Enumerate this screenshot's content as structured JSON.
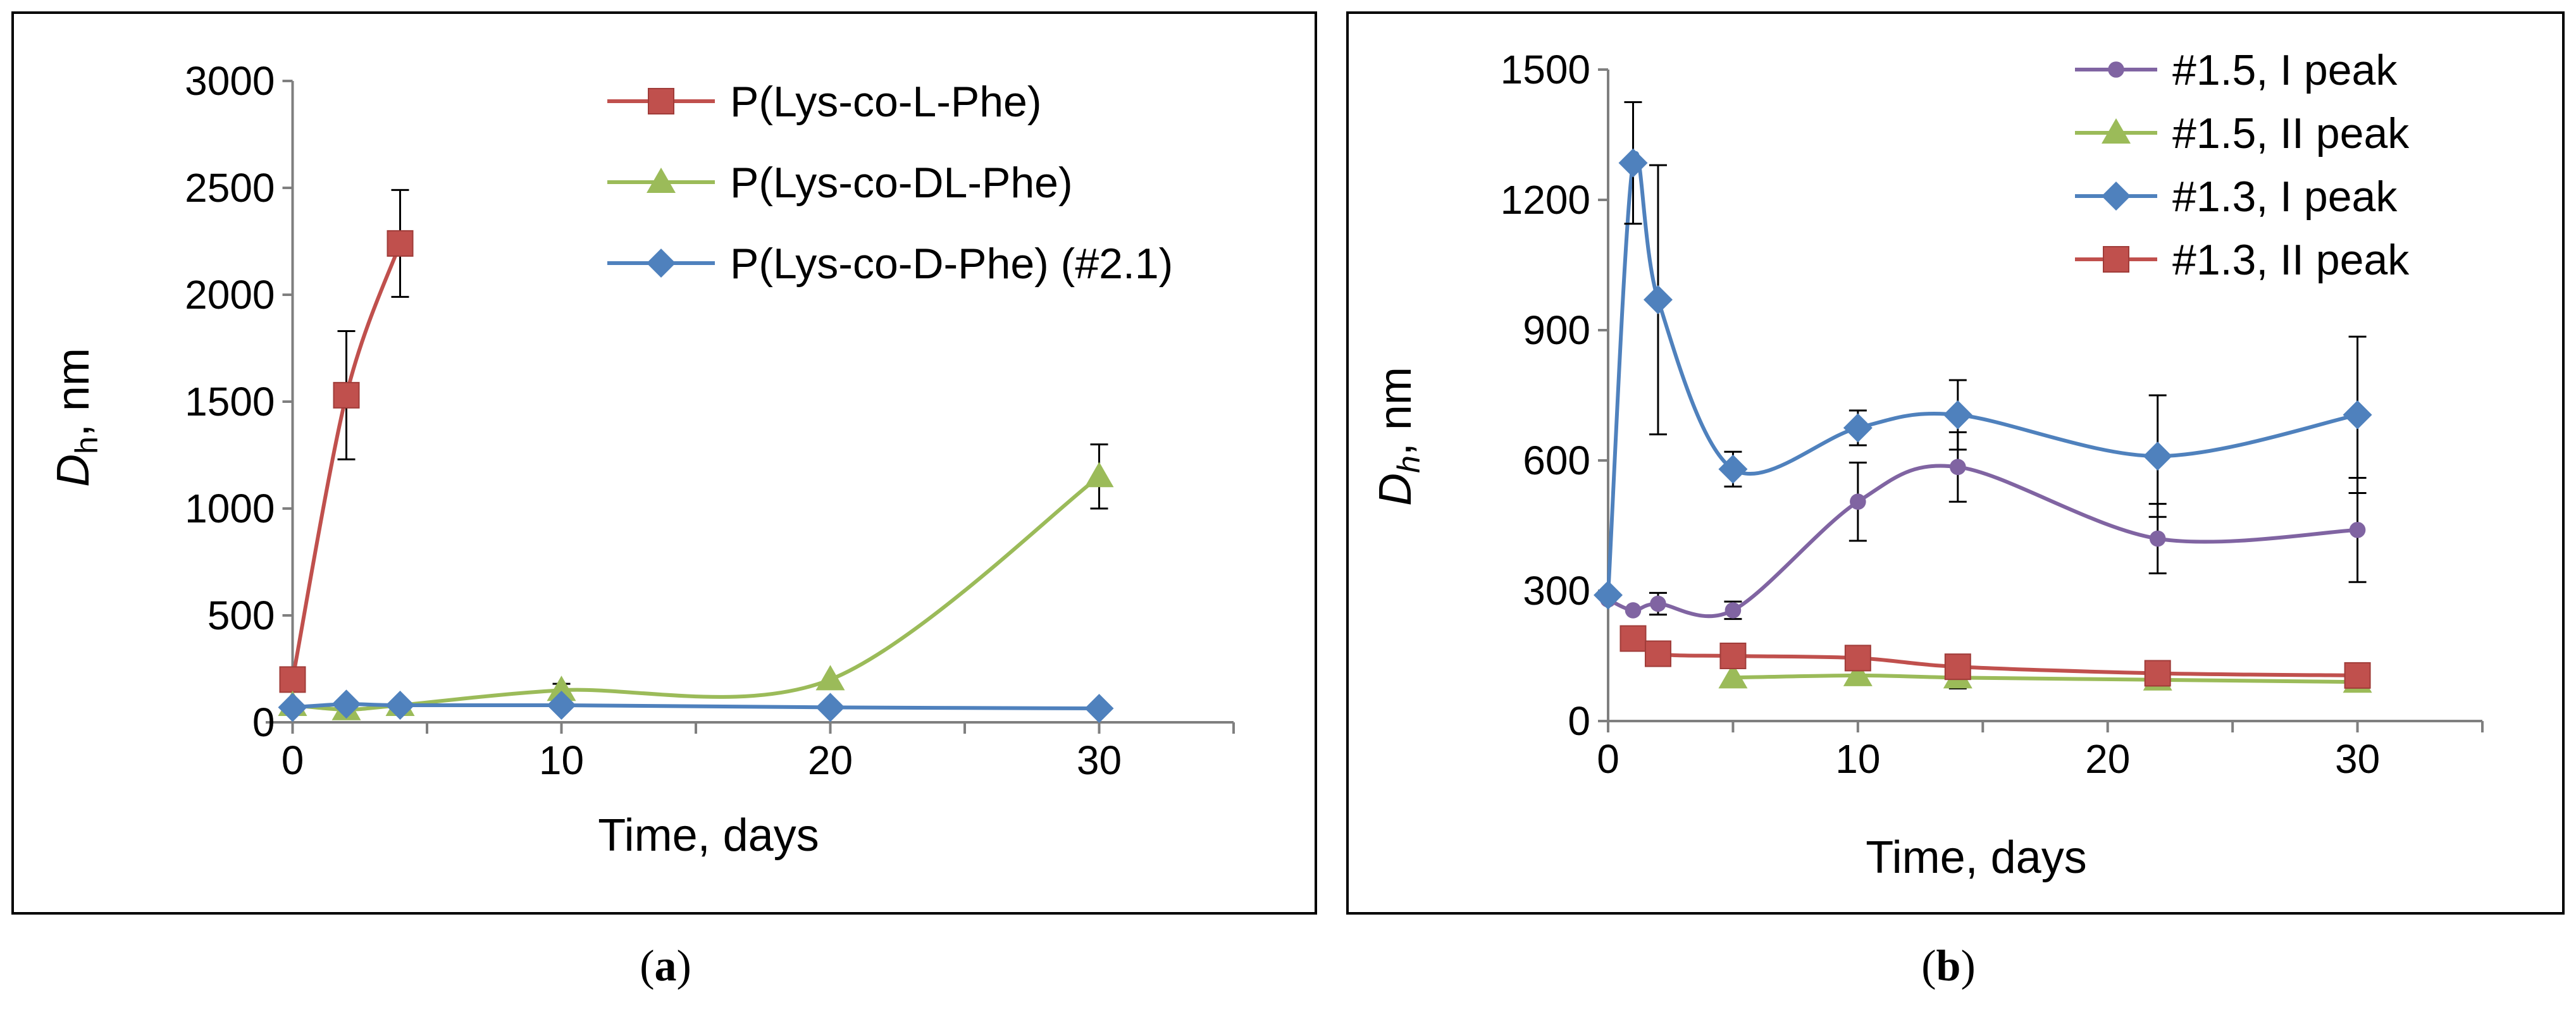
{
  "chart_data": [
    {
      "type": "line",
      "panel_label": "a",
      "xlabel": "Time, days",
      "ylabel_main": "D",
      "ylabel_sub": "h",
      "ylabel_suffix": ", nm",
      "xlim": [
        -1,
        35
      ],
      "ylim": [
        0,
        3000
      ],
      "xticks": [
        0,
        10,
        20,
        30
      ],
      "yticks": [
        0,
        500,
        1000,
        1500,
        2000,
        2500,
        3000
      ],
      "legend_position": "top-right",
      "grid": false,
      "series": [
        {
          "name": "P(Lys-co-L-Phe)",
          "color": "#c0504d",
          "marker": "square",
          "x": [
            0,
            2,
            4
          ],
          "y": [
            200,
            1530,
            2240
          ],
          "err": [
            0,
            300,
            250
          ]
        },
        {
          "name": "P(Lys-co-DL-Phe)",
          "color": "#9bbb59",
          "marker": "triangle",
          "x": [
            0,
            2,
            4,
            10,
            20,
            30
          ],
          "y": [
            80,
            60,
            80,
            150,
            200,
            1150
          ],
          "err": [
            0,
            0,
            0,
            30,
            0,
            150
          ]
        },
        {
          "name": "P(Lys-co-D-Phe) (#2.1)",
          "color": "#4f81bd",
          "marker": "diamond",
          "x": [
            0,
            2,
            4,
            10,
            20,
            30
          ],
          "y": [
            70,
            85,
            80,
            80,
            70,
            65
          ],
          "err": [
            0,
            0,
            0,
            0,
            0,
            0
          ]
        }
      ]
    },
    {
      "type": "line",
      "panel_label": "b",
      "xlabel": "Time, days",
      "ylabel_main": "D",
      "ylabel_sub": "h",
      "ylabel_suffix": ", nm",
      "xlim": [
        0,
        35
      ],
      "ylim": [
        0,
        1500
      ],
      "xticks": [
        0,
        10,
        20,
        30
      ],
      "yticks": [
        0,
        300,
        600,
        900,
        1200,
        1500
      ],
      "legend_position": "top-right",
      "grid": false,
      "series": [
        {
          "name": "#1.5, I peak",
          "color": "#8064a2",
          "marker": "circle",
          "x": [
            0,
            1,
            2,
            5,
            10,
            14,
            22,
            30
          ],
          "y": [
            280,
            255,
            270,
            255,
            505,
            585,
            420,
            440
          ],
          "err": [
            0,
            0,
            25,
            20,
            90,
            80,
            80,
            120
          ]
        },
        {
          "name": "#1.5, II peak",
          "color": "#9bbb59",
          "marker": "triangle",
          "x": [
            5,
            10,
            14,
            22,
            30
          ],
          "y": [
            100,
            105,
            100,
            95,
            90
          ],
          "err": [
            0,
            0,
            25,
            0,
            0
          ]
        },
        {
          "name": "#1.3, I peak",
          "color": "#4f81bd",
          "marker": "diamond",
          "x": [
            0,
            1,
            2,
            5,
            10,
            14,
            22,
            30
          ],
          "y": [
            290,
            1285,
            970,
            580,
            675,
            705,
            610,
            705
          ],
          "err": [
            0,
            140,
            310,
            40,
            40,
            80,
            140,
            180
          ]
        },
        {
          "name": "#1.3, II peak",
          "color": "#c0504d",
          "marker": "square",
          "x": [
            1,
            2,
            5,
            10,
            14,
            22,
            30
          ],
          "y": [
            190,
            155,
            150,
            145,
            125,
            110,
            105
          ],
          "err": [
            0,
            0,
            0,
            0,
            0,
            0,
            0
          ]
        }
      ]
    }
  ]
}
